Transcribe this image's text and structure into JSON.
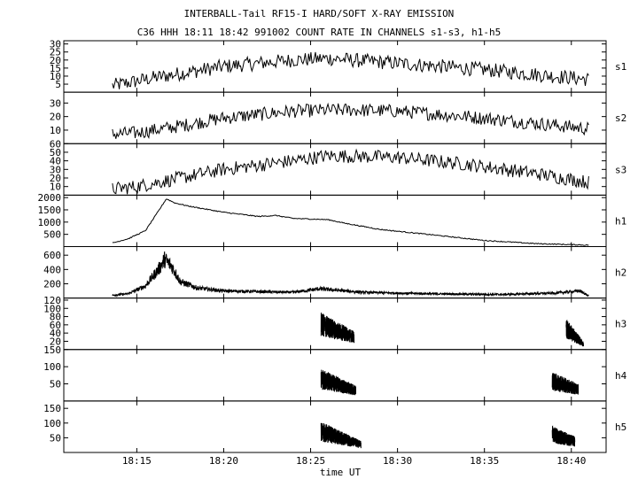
{
  "header": {
    "title": "INTERBALL-Tail RF15-I HARD/SOFT X-RAY EMISSION",
    "subtitle": "C36 HHH 18:11 18:42 991002  COUNT RATE IN CHANNELS s1-s3, h1-h5"
  },
  "chart_data": {
    "type": "line",
    "title": "INTERBALL-Tail RF15-I HARD/SOFT X-RAY EMISSION",
    "subtitle": "C36 HHH 18:11 18:42 991002  COUNT RATE IN CHANNELS s1-s3, h1-h5",
    "xlabel": "time UT",
    "x_unit": "minutes of hour 18 (UT)",
    "x_range": [
      10.8,
      42.0
    ],
    "x_ticks": [
      15,
      20,
      25,
      30,
      35,
      40
    ],
    "x_tick_labels": [
      "18:15",
      "18:20",
      "18:25",
      "18:30",
      "18:35",
      "18:40"
    ],
    "data_time_range": [
      13.6,
      41.0
    ],
    "panels": [
      {
        "name": "s1",
        "ylim": [
          0,
          32
        ],
        "yticks": [
          5,
          10,
          15,
          20,
          25,
          30
        ],
        "ytick_labels": [
          "5",
          "10",
          "15",
          "20",
          "25",
          "30"
        ],
        "profile": [
          [
            13.6,
            4
          ],
          [
            16,
            9
          ],
          [
            20,
            16
          ],
          [
            24,
            20
          ],
          [
            26,
            21
          ],
          [
            30,
            18
          ],
          [
            35,
            14
          ],
          [
            38,
            11
          ],
          [
            41,
            8
          ]
        ],
        "noise": 4.5
      },
      {
        "name": "s2",
        "ylim": [
          0,
          38
        ],
        "yticks": [
          10,
          20,
          30
        ],
        "ytick_labels": [
          "10",
          "20",
          "30"
        ],
        "profile": [
          [
            13.6,
            7
          ],
          [
            15,
            8
          ],
          [
            17,
            12
          ],
          [
            20,
            19
          ],
          [
            24,
            24
          ],
          [
            27,
            25
          ],
          [
            30,
            24
          ],
          [
            34,
            20
          ],
          [
            38,
            15
          ],
          [
            41,
            11
          ]
        ],
        "noise": 5
      },
      {
        "name": "s3",
        "ylim": [
          0,
          60
        ],
        "yticks": [
          10,
          20,
          30,
          40,
          50,
          60
        ],
        "ytick_labels": [
          "10",
          "20",
          "30",
          "40",
          "50",
          "60"
        ],
        "profile": [
          [
            13.6,
            7
          ],
          [
            15,
            10
          ],
          [
            17,
            18
          ],
          [
            20,
            30
          ],
          [
            24,
            40
          ],
          [
            26,
            46
          ],
          [
            30,
            44
          ],
          [
            34,
            36
          ],
          [
            38,
            25
          ],
          [
            41,
            15
          ]
        ],
        "noise": 8
      },
      {
        "name": "h1",
        "ylim": [
          0,
          2100
        ],
        "yticks": [
          500,
          1000,
          1500,
          2000
        ],
        "ytick_labels": [
          "500",
          "1000",
          "1500",
          "2000"
        ],
        "profile": [
          [
            13.6,
            150
          ],
          [
            14.5,
            320
          ],
          [
            15.5,
            650
          ],
          [
            16.2,
            1400
          ],
          [
            16.7,
            1950
          ],
          [
            17.2,
            1780
          ],
          [
            18,
            1650
          ],
          [
            20,
            1400
          ],
          [
            22,
            1230
          ],
          [
            23,
            1270
          ],
          [
            24,
            1150
          ],
          [
            26,
            1100
          ],
          [
            27,
            950
          ],
          [
            29,
            700
          ],
          [
            32,
            480
          ],
          [
            35,
            250
          ],
          [
            38,
            120
          ],
          [
            41,
            60
          ]
        ],
        "noise": 20
      },
      {
        "name": "h2",
        "ylim": [
          0,
          720
        ],
        "yticks": [
          200,
          400,
          600
        ],
        "ytick_labels": [
          "200",
          "400",
          "600"
        ],
        "profile": [
          [
            13.2,
            30
          ],
          [
            14.5,
            60
          ],
          [
            15.5,
            170
          ],
          [
            16.3,
            420
          ],
          [
            16.6,
            540
          ],
          [
            17,
            450
          ],
          [
            17.5,
            230
          ],
          [
            18.5,
            140
          ],
          [
            20,
            100
          ],
          [
            24,
            80
          ],
          [
            25.5,
            130
          ],
          [
            26.5,
            110
          ],
          [
            28,
            80
          ],
          [
            32,
            60
          ],
          [
            36,
            50
          ],
          [
            39,
            70
          ],
          [
            40.5,
            100
          ],
          [
            41,
            30
          ]
        ],
        "noise": 45
      },
      {
        "name": "h3",
        "ylim": [
          0,
          125
        ],
        "yticks": [
          20,
          40,
          60,
          80,
          100,
          120
        ],
        "ytick_labels": [
          "20",
          "40",
          "60",
          "80",
          "100",
          "120"
        ],
        "profile": [
          [
            13.6,
            0
          ],
          [
            41,
            0
          ]
        ],
        "noise": 0,
        "bursts": [
          {
            "start": 25.6,
            "end": 27.5,
            "peak": 90,
            "end_level": 45
          },
          {
            "start": 39.7,
            "end": 40.7,
            "peak": 75,
            "end_level": 20
          }
        ]
      },
      {
        "name": "h4",
        "ylim": [
          0,
          150
        ],
        "yticks": [
          50,
          100,
          150
        ],
        "ytick_labels": [
          "50",
          "100",
          "150"
        ],
        "profile": [
          [
            13.6,
            0
          ],
          [
            41,
            0
          ]
        ],
        "noise": 0,
        "bursts": [
          {
            "start": 25.6,
            "end": 27.6,
            "peak": 95,
            "end_level": 45
          },
          {
            "start": 38.9,
            "end": 40.4,
            "peak": 85,
            "end_level": 50
          }
        ]
      },
      {
        "name": "h5",
        "ylim": [
          0,
          175
        ],
        "yticks": [
          50,
          100,
          150
        ],
        "ytick_labels": [
          "50",
          "100",
          "150"
        ],
        "profile": [
          [
            13.6,
            0
          ],
          [
            41,
            0
          ]
        ],
        "noise": 0,
        "bursts": [
          {
            "start": 25.6,
            "end": 27.9,
            "peak": 105,
            "end_level": 40
          },
          {
            "start": 38.9,
            "end": 40.2,
            "peak": 90,
            "end_level": 55
          }
        ]
      }
    ]
  }
}
